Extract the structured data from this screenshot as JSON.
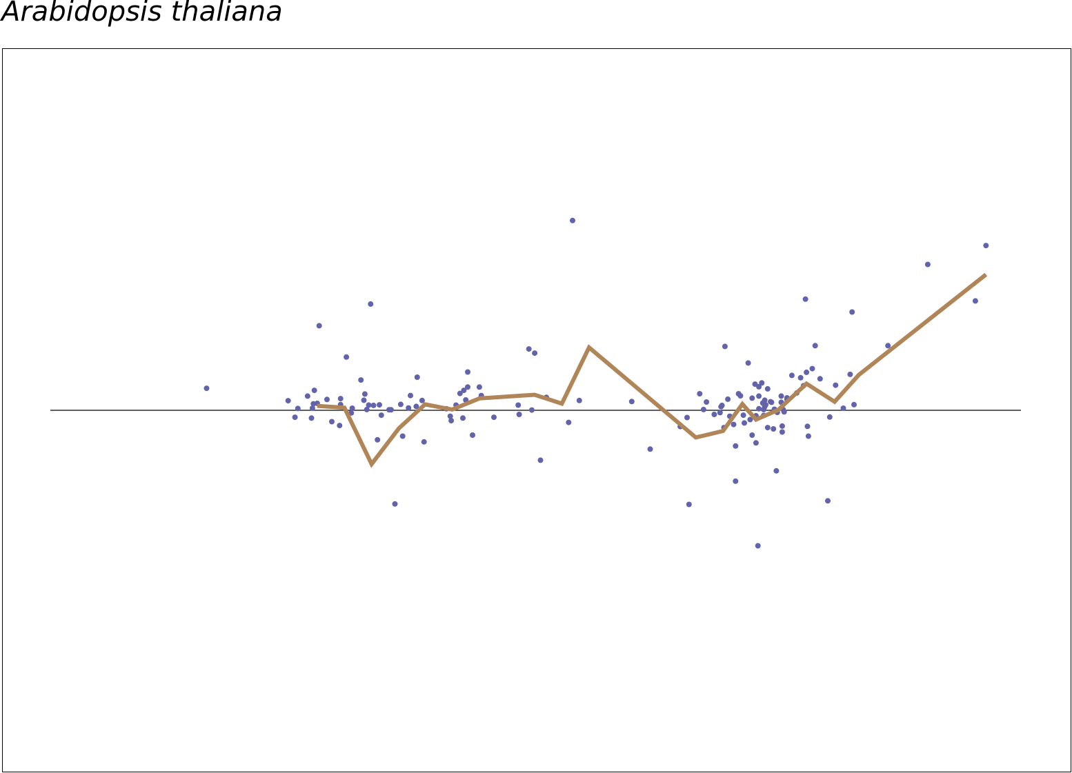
{
  "title": "Arabidopsis thaliana",
  "chart_data": {
    "type": "scatter",
    "title": "Arabidopsis thaliana",
    "xlabel": "",
    "ylabel": "",
    "xlim": [
      0,
      100
    ],
    "ylim": [
      -100,
      100
    ],
    "baseline_y": 0,
    "grid": false,
    "colors": {
      "points": "#6263ab",
      "line": "#b08558",
      "baseline": "#000000",
      "frame": "#000000"
    },
    "series": [
      {
        "type": "scatter",
        "points": [
          [
            16.1,
            8.5
          ],
          [
            24.5,
            3.7
          ],
          [
            25.2,
            -2.7
          ],
          [
            25.5,
            0.7
          ],
          [
            26.5,
            5.5
          ],
          [
            26.9,
            -3.0
          ],
          [
            27.0,
            0.8
          ],
          [
            27.1,
            2.5
          ],
          [
            27.2,
            7.7
          ],
          [
            27.5,
            2.7
          ],
          [
            27.7,
            32.7
          ],
          [
            28.5,
            4.2
          ],
          [
            29.0,
            -4.4
          ],
          [
            29.8,
            -5.9
          ],
          [
            29.9,
            2.2
          ],
          [
            29.9,
            4.5
          ],
          [
            30.5,
            20.6
          ],
          [
            31.0,
            -1.0
          ],
          [
            31.1,
            0.8
          ],
          [
            32.0,
            11.7
          ],
          [
            32.3,
            3.9
          ],
          [
            32.4,
            6.3
          ],
          [
            32.6,
            0.3
          ],
          [
            32.8,
            2.0
          ],
          [
            33.0,
            41.1
          ],
          [
            33.3,
            1.9
          ],
          [
            33.7,
            -11.4
          ],
          [
            33.9,
            2.1
          ],
          [
            34.1,
            -1.9
          ],
          [
            34.9,
            0.2
          ],
          [
            35.1,
            0.2
          ],
          [
            35.5,
            -36.2
          ],
          [
            36.1,
            2.3
          ],
          [
            36.3,
            -10.0
          ],
          [
            36.9,
            0.9
          ],
          [
            37.1,
            5.7
          ],
          [
            37.7,
            1.5
          ],
          [
            37.8,
            12.8
          ],
          [
            38.3,
            3.8
          ],
          [
            38.5,
            -12.2
          ],
          [
            40.8,
            0.6
          ],
          [
            41.2,
            -2.3
          ],
          [
            41.3,
            -4.0
          ],
          [
            41.8,
            2.0
          ],
          [
            42.2,
            6.5
          ],
          [
            42.5,
            -3.0
          ],
          [
            42.6,
            7.7
          ],
          [
            42.8,
            4.0
          ],
          [
            43.0,
            14.8
          ],
          [
            43.0,
            9.0
          ],
          [
            43.5,
            -9.6
          ],
          [
            44.2,
            9.0
          ],
          [
            44.4,
            5.7
          ],
          [
            45.7,
            -2.7
          ],
          [
            48.2,
            2.0
          ],
          [
            48.3,
            -1.6
          ],
          [
            49.3,
            23.7
          ],
          [
            49.6,
            0.1
          ],
          [
            49.9,
            22.1
          ],
          [
            50.5,
            -19.3
          ],
          [
            51.1,
            5.0
          ],
          [
            53.4,
            -4.7
          ],
          [
            53.8,
            73.4
          ],
          [
            54.5,
            3.8
          ],
          [
            59.9,
            3.4
          ],
          [
            61.8,
            -15.0
          ],
          [
            64.9,
            -6.3
          ],
          [
            65.6,
            -2.8
          ],
          [
            65.8,
            -36.4
          ],
          [
            66.9,
            6.4
          ],
          [
            67.3,
            0.3
          ],
          [
            67.6,
            3.2
          ],
          [
            68.4,
            -1.6
          ],
          [
            69.0,
            -0.9
          ],
          [
            69.1,
            1.4
          ],
          [
            69.2,
            1.9
          ],
          [
            69.4,
            -6.7
          ],
          [
            69.5,
            24.7
          ],
          [
            69.8,
            4.3
          ],
          [
            70.0,
            -2.3
          ],
          [
            70.4,
            -5.5
          ],
          [
            70.6,
            -13.8
          ],
          [
            70.6,
            -27.4
          ],
          [
            70.9,
            6.4
          ],
          [
            71.1,
            5.6
          ],
          [
            71.4,
            -1.9
          ],
          [
            71.5,
            -4.9
          ],
          [
            71.9,
            18.3
          ],
          [
            72.1,
            -3.6
          ],
          [
            72.3,
            4.7
          ],
          [
            72.3,
            -9.6
          ],
          [
            72.6,
            10.1
          ],
          [
            72.7,
            -2.1
          ],
          [
            72.7,
            -12.6
          ],
          [
            72.9,
            -52.4
          ],
          [
            73.0,
            0.6
          ],
          [
            73.0,
            5.5
          ],
          [
            73.0,
            9.1
          ],
          [
            73.3,
            10.6
          ],
          [
            73.4,
            2.8
          ],
          [
            73.5,
            -2.0
          ],
          [
            73.5,
            0.3
          ],
          [
            73.6,
            1.4
          ],
          [
            73.6,
            3.9
          ],
          [
            73.7,
            2.1
          ],
          [
            73.9,
            8.3
          ],
          [
            73.9,
            -6.7
          ],
          [
            74.2,
            3.3
          ],
          [
            74.3,
            3.1
          ],
          [
            74.5,
            -7.2
          ],
          [
            74.6,
            0.4
          ],
          [
            74.8,
            -23.4
          ],
          [
            74.9,
            -0.8
          ],
          [
            75.3,
            5.5
          ],
          [
            75.3,
            3.1
          ],
          [
            75.4,
            -6.1
          ],
          [
            75.4,
            -8.4
          ],
          [
            75.5,
            0.3
          ],
          [
            75.6,
            -0.6
          ],
          [
            75.9,
            4.8
          ],
          [
            75.9,
            4.2
          ],
          [
            76.4,
            13.5
          ],
          [
            76.9,
            6.7
          ],
          [
            77.3,
            12.6
          ],
          [
            77.6,
            9.5
          ],
          [
            77.8,
            43.0
          ],
          [
            77.9,
            14.7
          ],
          [
            78.0,
            -6.2
          ],
          [
            78.1,
            -10.0
          ],
          [
            78.5,
            16.1
          ],
          [
            78.8,
            25.0
          ],
          [
            79.3,
            12.2
          ],
          [
            80.1,
            -35.0
          ],
          [
            80.3,
            -2.6
          ],
          [
            80.9,
            9.7
          ],
          [
            81.7,
            0.8
          ],
          [
            82.4,
            13.9
          ],
          [
            82.6,
            38.0
          ],
          [
            82.8,
            2.2
          ],
          [
            86.3,
            25.0
          ],
          [
            90.4,
            56.4
          ],
          [
            95.3,
            42.3
          ],
          [
            96.4,
            63.7
          ]
        ]
      },
      {
        "type": "line",
        "points": [
          [
            27.5,
            1.7
          ],
          [
            30.3,
            1.0
          ],
          [
            33.1,
            -20.8
          ],
          [
            35.9,
            -7.0
          ],
          [
            38.6,
            2.3
          ],
          [
            41.4,
            0.3
          ],
          [
            44.2,
            4.6
          ],
          [
            49.9,
            6.0
          ],
          [
            52.7,
            2.6
          ],
          [
            55.5,
            24.3
          ],
          [
            66.5,
            -10.5
          ],
          [
            69.3,
            -8.0
          ],
          [
            71.3,
            2.4
          ],
          [
            72.7,
            -3.6
          ],
          [
            75.0,
            0.2
          ],
          [
            77.9,
            10.3
          ],
          [
            80.8,
            3.3
          ],
          [
            83.3,
            13.7
          ],
          [
            96.4,
            52.5
          ]
        ]
      }
    ]
  }
}
